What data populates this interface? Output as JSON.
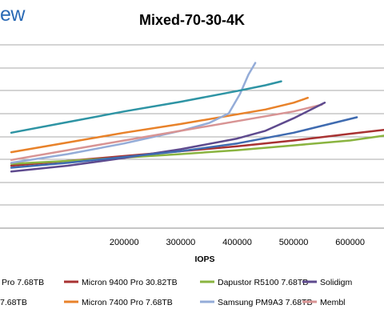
{
  "logo_text": "ew",
  "chart_data": {
    "type": "line",
    "title": "Mixed-70-30-4K",
    "xlabel": "IOPS",
    "ylabel": "",
    "xlim": [
      -20000,
      660000
    ],
    "ylim": [
      0,
      10
    ],
    "x_ticks": [
      200000,
      300000,
      400000,
      500000,
      600000
    ],
    "x_tick_labels": [
      "200000",
      "300000",
      "400000",
      "500000",
      "600000"
    ],
    "y_gridlines": [
      0,
      1,
      2,
      3,
      4,
      5,
      6,
      7,
      8
    ],
    "grid": true,
    "legend_position": "bottom",
    "series": [
      {
        "name": "Micron 9400 Pro 30.82TB",
        "color": "#a83232",
        "x": [
          0,
          100000,
          200000,
          300000,
          400000,
          500000,
          600000,
          660000
        ],
        "y": [
          3.3,
          3.55,
          3.8,
          4.05,
          4.3,
          4.6,
          4.95,
          5.15
        ]
      },
      {
        "name": "Dapustor R5100 7.68TB",
        "color": "#8ab440",
        "x": [
          0,
          100000,
          200000,
          300000,
          400000,
          500000,
          600000,
          660000
        ],
        "y": [
          3.4,
          3.55,
          3.72,
          3.9,
          4.1,
          4.35,
          4.6,
          4.85
        ]
      },
      {
        "name": "Micron 7400 Pro 7.68TB",
        "color": "#e8822a",
        "x": [
          0,
          100000,
          200000,
          300000,
          400000,
          450000,
          500000,
          525000
        ],
        "y": [
          4.0,
          4.5,
          5.0,
          5.45,
          5.95,
          6.2,
          6.55,
          6.8
        ]
      },
      {
        "name": "Samsung PM9A3 7.68TB",
        "color": "#94acd8",
        "x": [
          0,
          100000,
          200000,
          300000,
          350000,
          385000,
          405000,
          420000,
          432000
        ],
        "y": [
          3.45,
          3.9,
          4.45,
          5.1,
          5.5,
          6.0,
          7.0,
          8.0,
          8.6
        ]
      },
      {
        "name": "",
        "color": "#2e94a4",
        "x": [
          0,
          100000,
          200000,
          300000,
          400000,
          450000,
          478000
        ],
        "y": [
          5.0,
          5.55,
          6.1,
          6.6,
          7.15,
          7.45,
          7.65
        ]
      },
      {
        "name": "",
        "color": "#d89494",
        "x": [
          0,
          100000,
          200000,
          300000,
          400000,
          500000,
          550000
        ],
        "y": [
          3.6,
          4.1,
          4.6,
          5.1,
          5.6,
          6.1,
          6.45
        ]
      },
      {
        "name": "",
        "color": "#5e4a8e",
        "x": [
          0,
          100000,
          200000,
          300000,
          400000,
          450000,
          500000,
          555000
        ],
        "y": [
          3.0,
          3.3,
          3.7,
          4.15,
          4.7,
          5.1,
          5.75,
          6.55
        ]
      },
      {
        "name": "",
        "color": "#3f6bb0",
        "x": [
          0,
          100000,
          200000,
          300000,
          400000,
          500000,
          612000
        ],
        "y": [
          3.2,
          3.45,
          3.75,
          4.05,
          4.45,
          5.0,
          5.8
        ]
      }
    ],
    "legend_entries": [
      {
        "label": "Micron 9400 Pro 30.82TB",
        "color": "#a83232",
        "col": 1,
        "row": 0
      },
      {
        "label": "Dapustor R5100 7.68TB",
        "color": "#8ab440",
        "col": 2,
        "row": 0
      },
      {
        "label": "Micron 7400 Pro 7.68TB",
        "color": "#e8822a",
        "col": 1,
        "row": 1
      },
      {
        "label": "Samsung PM9A3 7.68TB",
        "color": "#94acd8",
        "col": 2,
        "row": 1
      },
      {
        "label": "Solidigm",
        "color": "#5e4a8e",
        "col": 3,
        "row": 0
      },
      {
        "label": "Membl",
        "color": "#d89494",
        "col": 3,
        "row": 1
      },
      {
        "label": "Pro 7.68TB",
        "color": "#3f6bb0",
        "col": 0,
        "row": 0
      },
      {
        "label": "7.68TB",
        "color": "#2e94a4",
        "col": 0,
        "row": 1
      }
    ]
  }
}
